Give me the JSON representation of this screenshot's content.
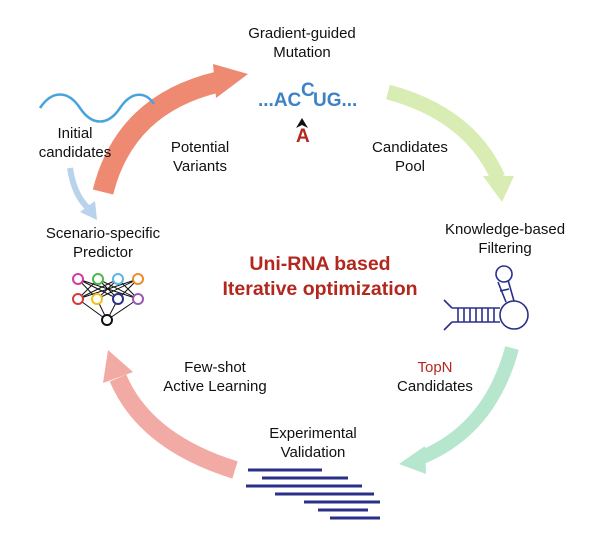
{
  "center_title": [
    "Uni-RNA based",
    "Iterative optimization"
  ],
  "nodes": {
    "mutation": [
      "Gradient-guided",
      "Mutation"
    ],
    "filtering": [
      "Knowledge-based",
      "Filtering"
    ],
    "validation": [
      "Experimental",
      "Validation"
    ],
    "predictor": [
      "Scenario-specific",
      "Predictor"
    ],
    "initial": [
      "Initial",
      "candidates"
    ]
  },
  "edges": {
    "variants": [
      "Potential",
      "Variants"
    ],
    "pool": [
      "Candidates",
      "Pool"
    ],
    "topn_highlight": "TopN",
    "topn": "Candidates",
    "learning": [
      "Few-shot",
      "Active Learning"
    ]
  },
  "sequence": {
    "prefix": "...AC",
    "inserted": "C",
    "suffix": "UG...",
    "mutant": "A"
  },
  "colors": {
    "title": "#b3281e",
    "arrow_variants": "#ef8a72",
    "arrow_pool": "#d9ecb4",
    "arrow_topn": "#b7e6cf",
    "arrow_learning": "#f2aaa4",
    "arrow_initial": "#b9d3ec",
    "sequence": "#3d82c4",
    "wave": "#4aa3dc",
    "network": "#2a2f8a"
  }
}
